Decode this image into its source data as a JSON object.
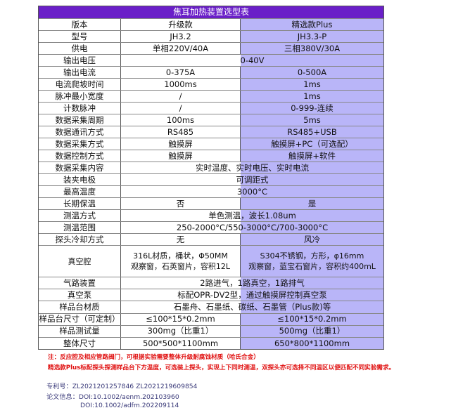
{
  "title": "焦耳加热装置选型表",
  "rows": [
    {
      "label": "版本",
      "a": "升级款",
      "b": "精选款Plus"
    },
    {
      "label": "型号",
      "a": "JH3.2",
      "b": "JH3.3-P"
    },
    {
      "label": "供电",
      "a": "单相220V/40A",
      "b": "三相380V/30A"
    },
    {
      "label": "输出电压",
      "both": "0-40V"
    },
    {
      "label": "输出电流",
      "a": "0-375A",
      "b": "0-500A"
    },
    {
      "label": "电流爬坡时间",
      "a": "1000ms",
      "b": "1ms"
    },
    {
      "label": "脉冲最小宽度",
      "a": "/",
      "b": "1ms"
    },
    {
      "label": "计数脉冲",
      "a": "/",
      "b": "0-999-连续"
    },
    {
      "label": "数据采集周期",
      "a": "100ms",
      "b": "5ms"
    },
    {
      "label": "数据通讯方式",
      "a": "RS485",
      "b": "RS485+USB"
    },
    {
      "label": "数据采集方式",
      "a": "触摸屏",
      "b": "触摸屏+PC（可选配）"
    },
    {
      "label": "数据控制方式",
      "a": "触摸屏",
      "b": "触摸屏+软件"
    },
    {
      "label": "数据采集内容",
      "both": "实时温度、实时电压、实时电流"
    },
    {
      "label": "装夹电极",
      "both": "可调距式"
    },
    {
      "label": "最高温度",
      "both": "3000°C"
    },
    {
      "label": "长期保温",
      "a": "否",
      "b": "是"
    },
    {
      "label": "测温方式",
      "both": "单色测温，波长1.08um"
    },
    {
      "label": "测温范围",
      "both": "250-2000°C/550-3000°C/700-3000°C"
    },
    {
      "label": "探头冷却方式",
      "a": "无",
      "b": "风冷"
    },
    {
      "label": "真空腔",
      "a": "316L材质，桶状，Φ50MM",
      "a2": "观察窗，石英窗片，容积12L",
      "b": "S304不锈钢，方形，φ16mm",
      "b2": "观察窗，蓝宝石窗片，容积约400mL"
    },
    {
      "label": "气路装置",
      "both": "2路进气，1路真空，1路排气"
    },
    {
      "label": "真空泵",
      "both": "标配OPR-DV2型，通过触摸屏控制真空泵"
    },
    {
      "label": "样品台材质",
      "both": "石墨舟、石墨纸、碳纸、石墨管（Plus款)等"
    },
    {
      "label": "样品台尺寸（可定制）",
      "a": "≤100*15*0.2mm",
      "b": "≤100*15*0.2mm"
    },
    {
      "label": "样品测试量",
      "a": "300mg（比重1）",
      "b": "500mg（比重1）"
    },
    {
      "label": "整体尺寸",
      "a": "500*500*1100mm",
      "b": "650*800*1100mm"
    }
  ],
  "notes": [
    "注：反应腔及相应管路阀门，可根据实验需要整体升级耐腐蚀材质（哈氏合金）",
    "精选款Plus标配探头探测样品台下方温度，可选装上探头，实现上下同时测温，双探头亦可选择不同温区以便匹配不同实验需求。"
  ],
  "info": {
    "patent": "专利号：ZL2021201257846  ZL2021219609854",
    "paper1": "论文信息：DOI:10.1002/aenm.202103960",
    "paper2": "DOI:10.1002/adfm.202209114"
  },
  "colors": {
    "header": "#6a1fc8",
    "plus_column": "#b9b5f8",
    "note": "#e01010"
  }
}
